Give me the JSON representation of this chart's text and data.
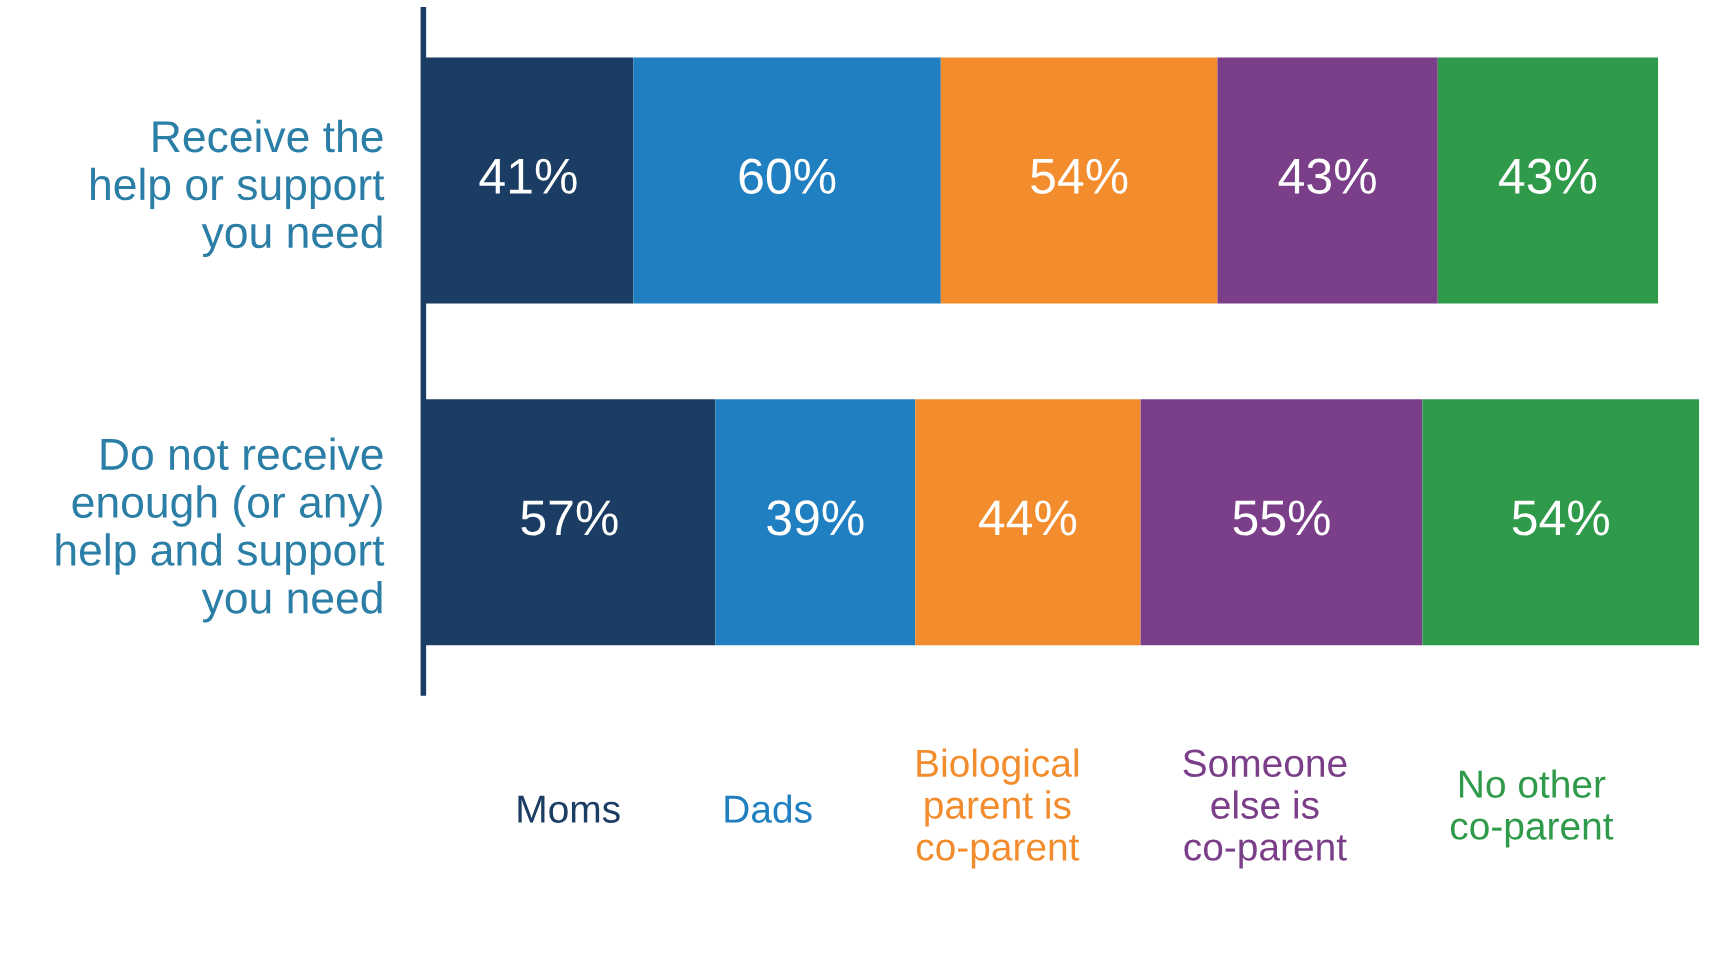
{
  "chart_data": {
    "type": "bar",
    "orientation": "horizontal",
    "stacked": true,
    "legend": "bottom",
    "grid": false,
    "categories": [
      "Receive the\nhelp or support\nyou need",
      "Do not receive\nenough (or any)\nhelp and support\nyou need"
    ],
    "series": [
      {
        "name": "Moms",
        "color": "#1c3d63",
        "values": [
          41,
          57
        ],
        "value_labels": [
          "41%",
          "57%"
        ]
      },
      {
        "name": "Dads",
        "color": "#1f7fc1",
        "values": [
          60,
          39
        ],
        "value_labels": [
          "60%",
          "39%"
        ]
      },
      {
        "name": "Biological\nparent is\nco-parent",
        "color": "#f28c2c",
        "values": [
          54,
          44
        ],
        "value_labels": [
          "54%",
          "44%"
        ]
      },
      {
        "name": "Someone\nelse is\nco-parent",
        "color": "#7b3f8a",
        "values": [
          43,
          55
        ],
        "value_labels": [
          "43%",
          "55%"
        ]
      },
      {
        "name": "No other\nco-parent",
        "color": "#2e9a4a",
        "values": [
          43,
          54
        ],
        "value_labels": [
          "43%",
          "54%"
        ]
      }
    ]
  }
}
